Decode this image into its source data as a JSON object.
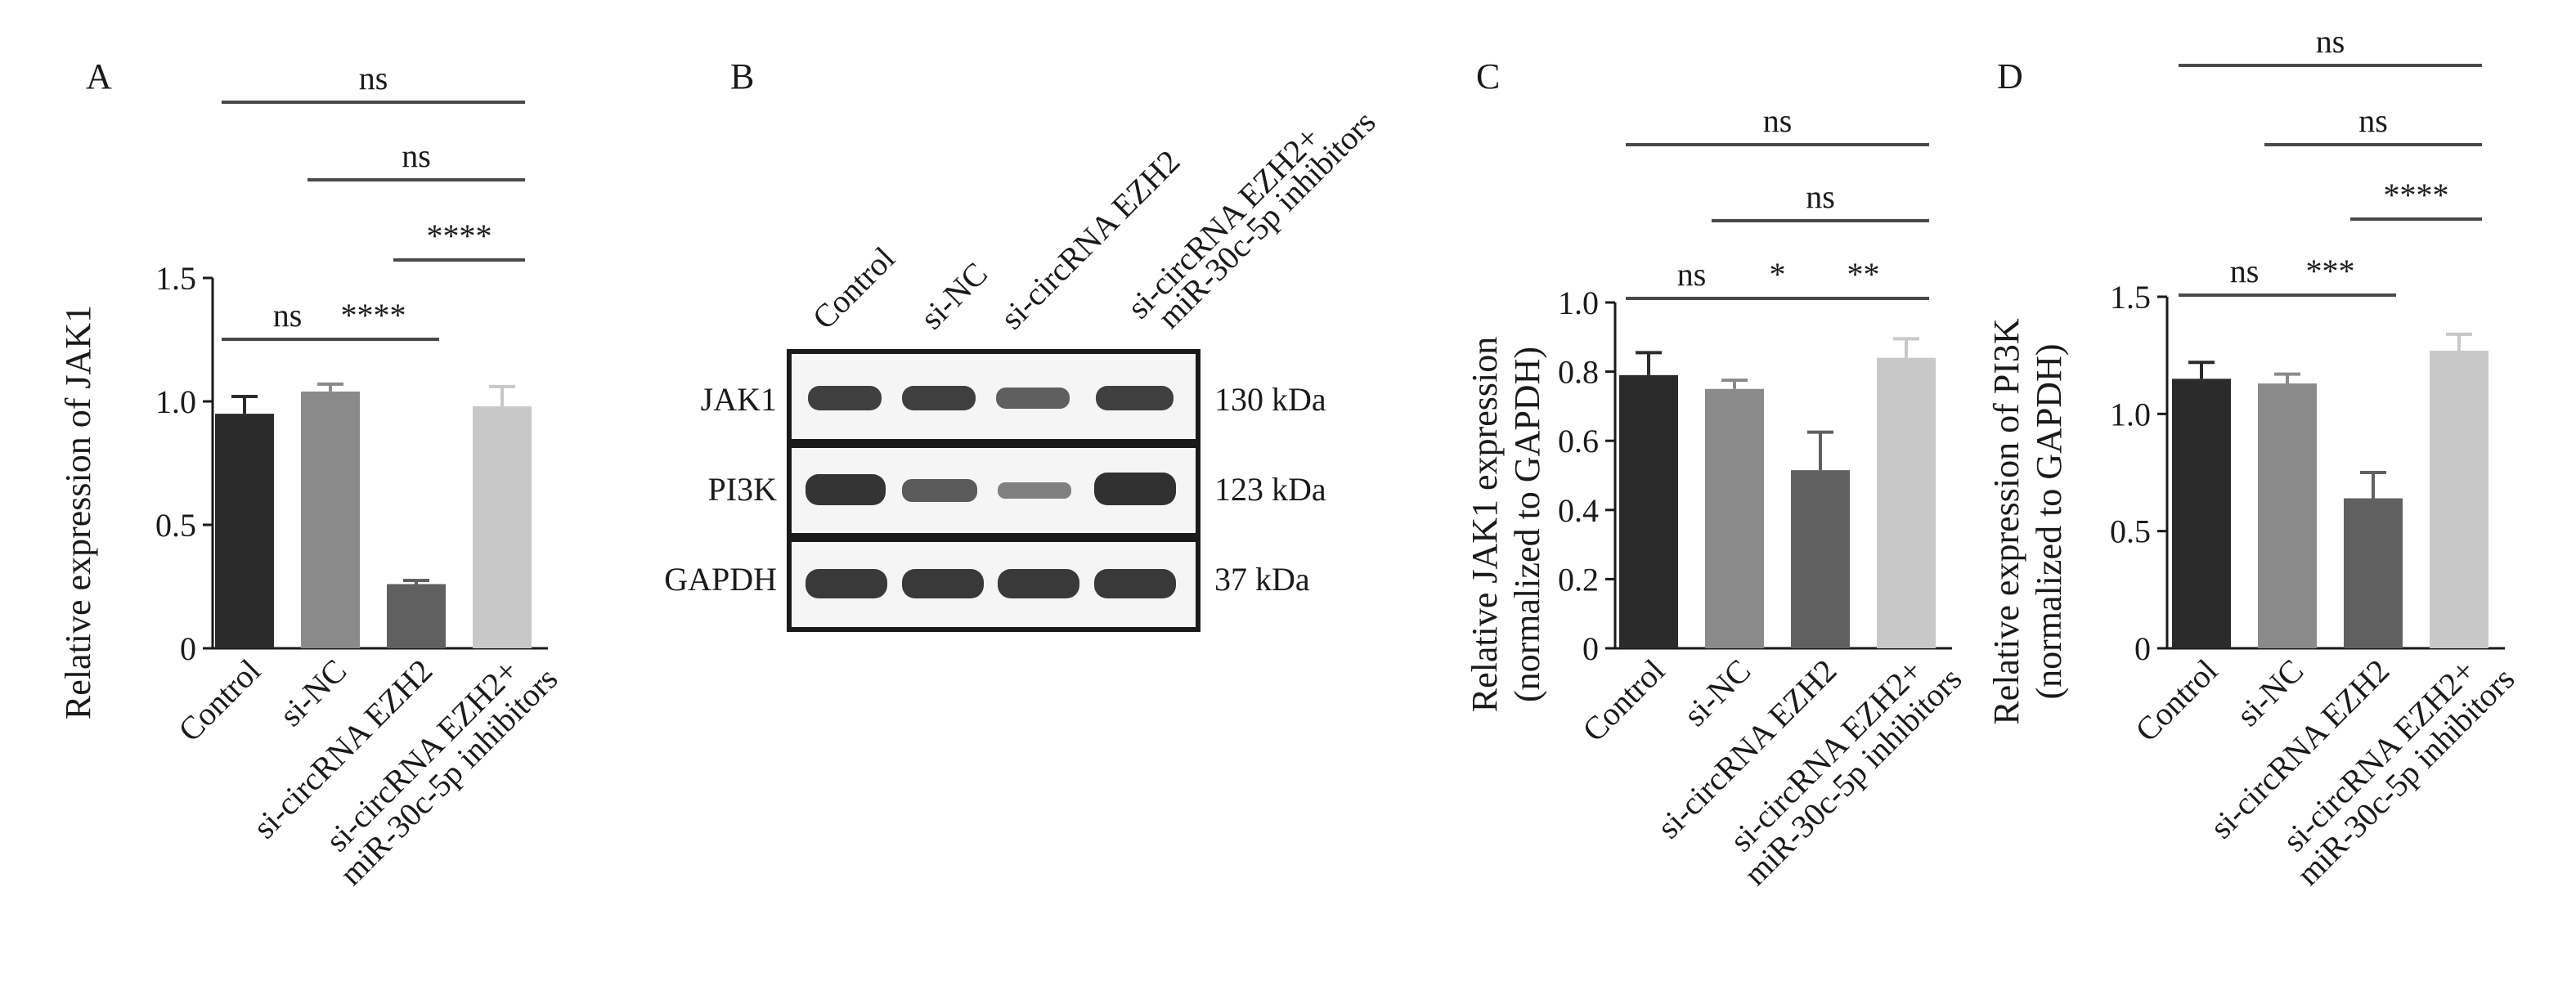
{
  "chart_data": [
    {
      "panel": "A",
      "type": "bar",
      "ylabel": "Relative expression of JAK1",
      "ylim": [
        0,
        1.5
      ],
      "yticks": [
        0,
        0.5,
        1.0,
        1.5
      ],
      "ytick_labels": [
        "0",
        "0.5",
        "1.0",
        "1.5"
      ],
      "categories": [
        "Control",
        "si-NC",
        "si-circRNA EZH2",
        "si-circRNA EZH2+ miR-30c-5p inhibitors"
      ],
      "category_lines": [
        [
          "Control"
        ],
        [
          "si-NC"
        ],
        [
          "si-circRNA EZH2"
        ],
        [
          "si-circRNA EZH2+",
          "miR-30c-5p inhibitors"
        ]
      ],
      "values": [
        0.95,
        1.04,
        0.26,
        0.98
      ],
      "errors": [
        0.07,
        0.03,
        0.015,
        0.08
      ],
      "colors": [
        "#2b2b2b",
        "#8a8a8a",
        "#606060",
        "#c8c8c8"
      ],
      "significance": [
        {
          "from": 0,
          "to": 3,
          "label": "ns"
        },
        {
          "from": 1,
          "to": 3,
          "label": "ns"
        },
        {
          "from": 2,
          "to": 3,
          "label": "****"
        },
        {
          "from": 0,
          "to": 1,
          "label": "ns"
        },
        {
          "from": 1,
          "to": 2,
          "label": "****"
        }
      ]
    },
    {
      "panel": "C",
      "type": "bar",
      "ylabel_lines": [
        "Relative JAK1 expression",
        "(normalized to GAPDH)"
      ],
      "ylim": [
        0,
        1.0
      ],
      "yticks": [
        0,
        0.2,
        0.4,
        0.6,
        0.8,
        1.0
      ],
      "ytick_labels": [
        "0",
        "0.2",
        "0.4",
        "0.6",
        "0.8",
        "1.0"
      ],
      "categories": [
        "Control",
        "si-NC",
        "si-circRNA EZH2",
        "si-circRNA EZH2+ miR-30c-5p inhibitors"
      ],
      "category_lines": [
        [
          "Control"
        ],
        [
          "si-NC"
        ],
        [
          "si-circRNA EZH2"
        ],
        [
          "si-circRNA EZH2+",
          "miR-30c-5p inhibitors"
        ]
      ],
      "values": [
        0.79,
        0.75,
        0.515,
        0.84
      ],
      "errors": [
        0.065,
        0.025,
        0.11,
        0.055
      ],
      "colors": [
        "#2b2b2b",
        "#8a8a8a",
        "#606060",
        "#c8c8c8"
      ],
      "significance": [
        {
          "from": 0,
          "to": 3,
          "label": "ns"
        },
        {
          "from": 1,
          "to": 3,
          "label": "ns"
        },
        {
          "from": 0,
          "to": 1,
          "label": "ns"
        },
        {
          "from": 1,
          "to": 2,
          "label": "*"
        },
        {
          "from": 2,
          "to": 3,
          "label": "**"
        }
      ]
    },
    {
      "panel": "D",
      "type": "bar",
      "ylabel_lines": [
        "Relative expression of PI3K",
        "(normalized to GAPDH)"
      ],
      "ylim": [
        0,
        1.5
      ],
      "yticks": [
        0,
        0.5,
        1.0,
        1.5
      ],
      "ytick_labels": [
        "0",
        "0.5",
        "1.0",
        "1.5"
      ],
      "categories": [
        "Control",
        "si-NC",
        "si-circRNA EZH2",
        "si-circRNA EZH2+ miR-30c-5p inhibitors"
      ],
      "category_lines": [
        [
          "Control"
        ],
        [
          "si-NC"
        ],
        [
          "si-circRNA EZH2"
        ],
        [
          "si-circRNA EZH2+",
          "miR-30c-5p inhibitors"
        ]
      ],
      "values": [
        1.15,
        1.13,
        0.64,
        1.27
      ],
      "errors": [
        0.07,
        0.04,
        0.11,
        0.07
      ],
      "colors": [
        "#2b2b2b",
        "#8a8a8a",
        "#606060",
        "#c8c8c8"
      ],
      "significance": [
        {
          "from": 0,
          "to": 3,
          "label": "ns"
        },
        {
          "from": 1,
          "to": 3,
          "label": "ns"
        },
        {
          "from": 2,
          "to": 3,
          "label": "****"
        },
        {
          "from": 0,
          "to": 1,
          "label": "ns"
        },
        {
          "from": 1,
          "to": 2,
          "label": "***"
        }
      ]
    }
  ],
  "western_blot": {
    "panel": "B",
    "lanes": [
      "Control",
      "si-NC",
      "si-circRNA EZH2"
    ],
    "lane4_lines": [
      "si-circRNA EZH2+",
      "miR-30c-5p inhibitors"
    ],
    "rows": [
      {
        "protein": "JAK1",
        "size": "130 kDa",
        "intensities": [
          0.85,
          0.85,
          0.7,
          0.85
        ]
      },
      {
        "protein": "PI3K",
        "size": "123 kDa",
        "intensities": [
          0.9,
          0.72,
          0.55,
          0.92
        ]
      },
      {
        "protein": "GAPDH",
        "size": "37 kDa",
        "intensities": [
          0.88,
          0.88,
          0.88,
          0.88
        ]
      }
    ]
  }
}
